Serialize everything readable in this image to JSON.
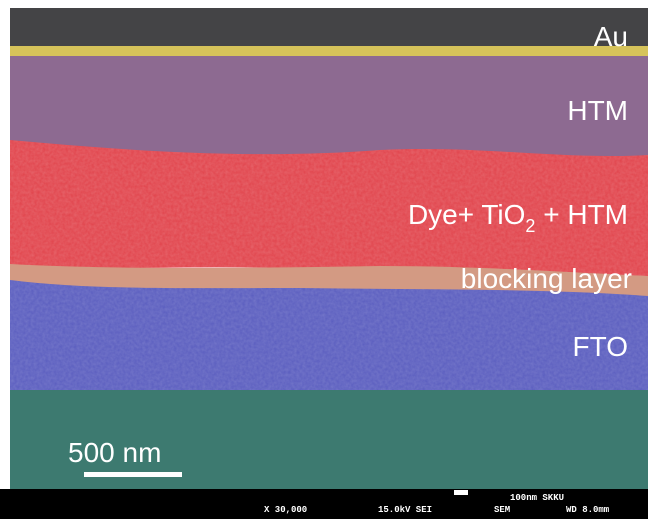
{
  "layers": {
    "au": "Au",
    "htm": "HTM",
    "dye": {
      "text": "Dye+ TiO",
      "sub": "2",
      "after": " + HTM"
    },
    "blocking": "blocking layer",
    "fto": "FTO"
  },
  "scale_bar": "500 nm",
  "info_bar": {
    "magnification": "X 30,000",
    "voltage": "15.0kV SEI",
    "mode": "SEM",
    "wd": "WD 8.0mm",
    "scale": "100nm SKKU"
  }
}
